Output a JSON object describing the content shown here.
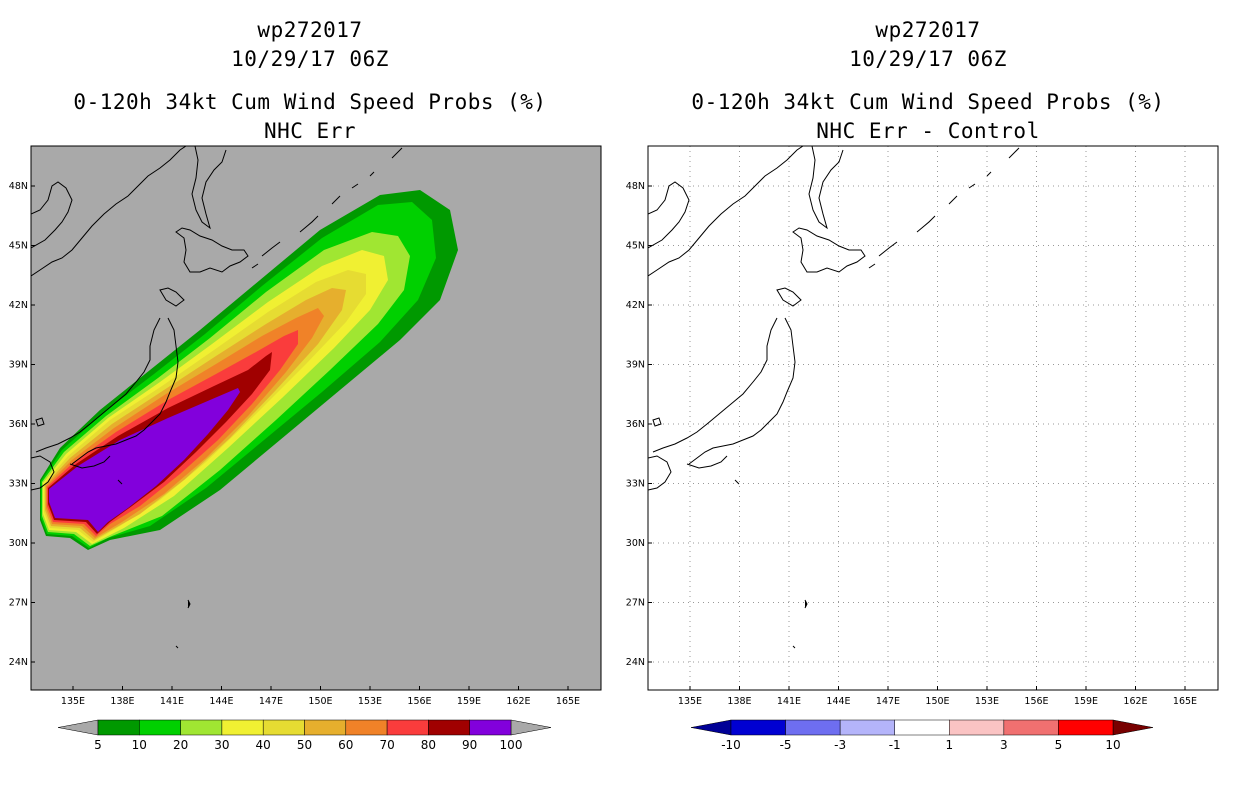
{
  "left_panel": {
    "storm_id": "wp272017",
    "datetime": "10/29/17 06Z",
    "product": "0-120h 34kt Cum Wind Speed Probs (%)",
    "subtitle": "NHC Err",
    "background_color": "#a9a9a9",
    "colorbar": {
      "labels": [
        "5",
        "10",
        "20",
        "30",
        "40",
        "50",
        "60",
        "70",
        "80",
        "90",
        "100"
      ],
      "colors": [
        "#009900",
        "#00d000",
        "#a0e632",
        "#f0f032",
        "#e6dc32",
        "#e6af2d",
        "#f08228",
        "#fa3c3c",
        "#a00000",
        "#8200dc"
      ],
      "under_color": "#a9a9a9",
      "over_color": "#a9a9a9"
    }
  },
  "right_panel": {
    "storm_id": "wp272017",
    "datetime": "10/29/17 06Z",
    "product": "0-120h 34kt Cum Wind Speed Probs (%)",
    "subtitle": "NHC Err - Control",
    "background_color": "#ffffff",
    "colorbar": {
      "labels": [
        "-10",
        "-5",
        "-3",
        "-1",
        "1",
        "3",
        "5",
        "10"
      ],
      "colors": [
        "#0000d2",
        "#6e6ef0",
        "#b4b4fa",
        "#ffffff",
        "#fac3c3",
        "#f07070",
        "#ff0000"
      ],
      "under_color": "#000096",
      "over_color": "#780000"
    }
  },
  "axes": {
    "lon_labels": [
      "135E",
      "138E",
      "141E",
      "144E",
      "147E",
      "150E",
      "153E",
      "156E",
      "159E",
      "162E",
      "165E"
    ],
    "lat_labels": [
      "48N",
      "45N",
      "42N",
      "39N",
      "36N",
      "33N",
      "30N",
      "27N",
      "24N"
    ]
  }
}
